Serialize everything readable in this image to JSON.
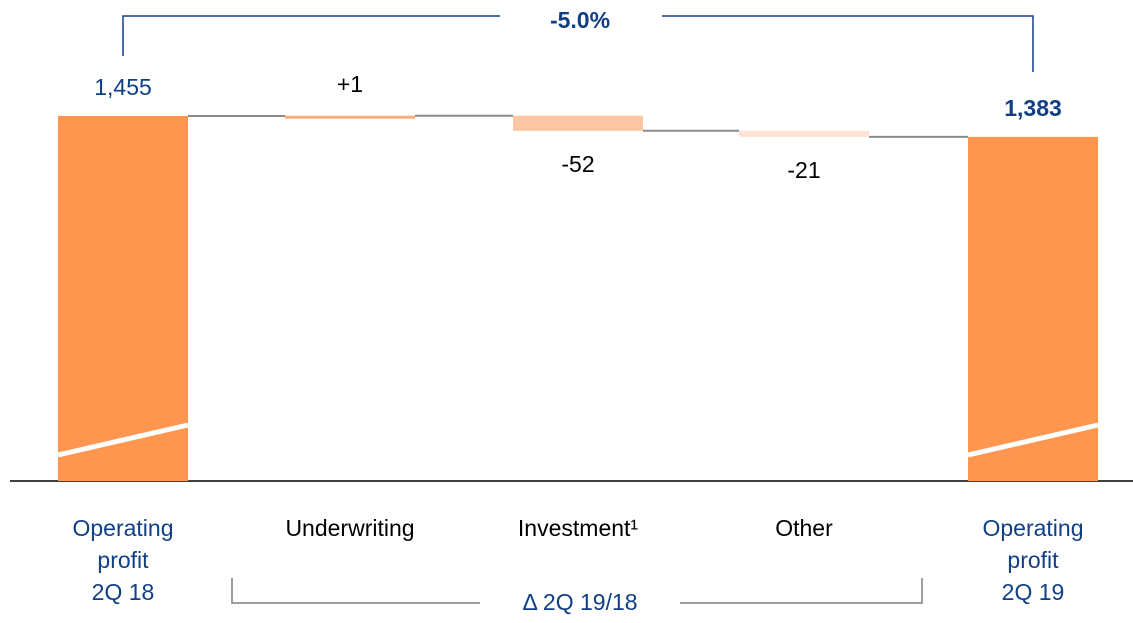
{
  "chart_data": {
    "type": "waterfall",
    "categories": [
      [
        "Operating",
        "profit",
        "2Q 18"
      ],
      "Underwriting",
      "Investment¹",
      "Other",
      [
        "Operating",
        "profit",
        "2Q 19"
      ]
    ],
    "measure": [
      "total",
      "relative",
      "relative",
      "relative",
      "total"
    ],
    "values": [
      1455,
      1,
      -52,
      -21,
      1383
    ],
    "value_labels": [
      "1,455",
      "+1",
      "-52",
      "-21",
      "1,383"
    ],
    "colors": [
      "#ff964f",
      "#fbad7b",
      "#fcc6a5",
      "#fde4d4",
      "#ff964f"
    ],
    "change_label": "-5.0%",
    "delta_label": "Δ 2Q 19/18"
  }
}
